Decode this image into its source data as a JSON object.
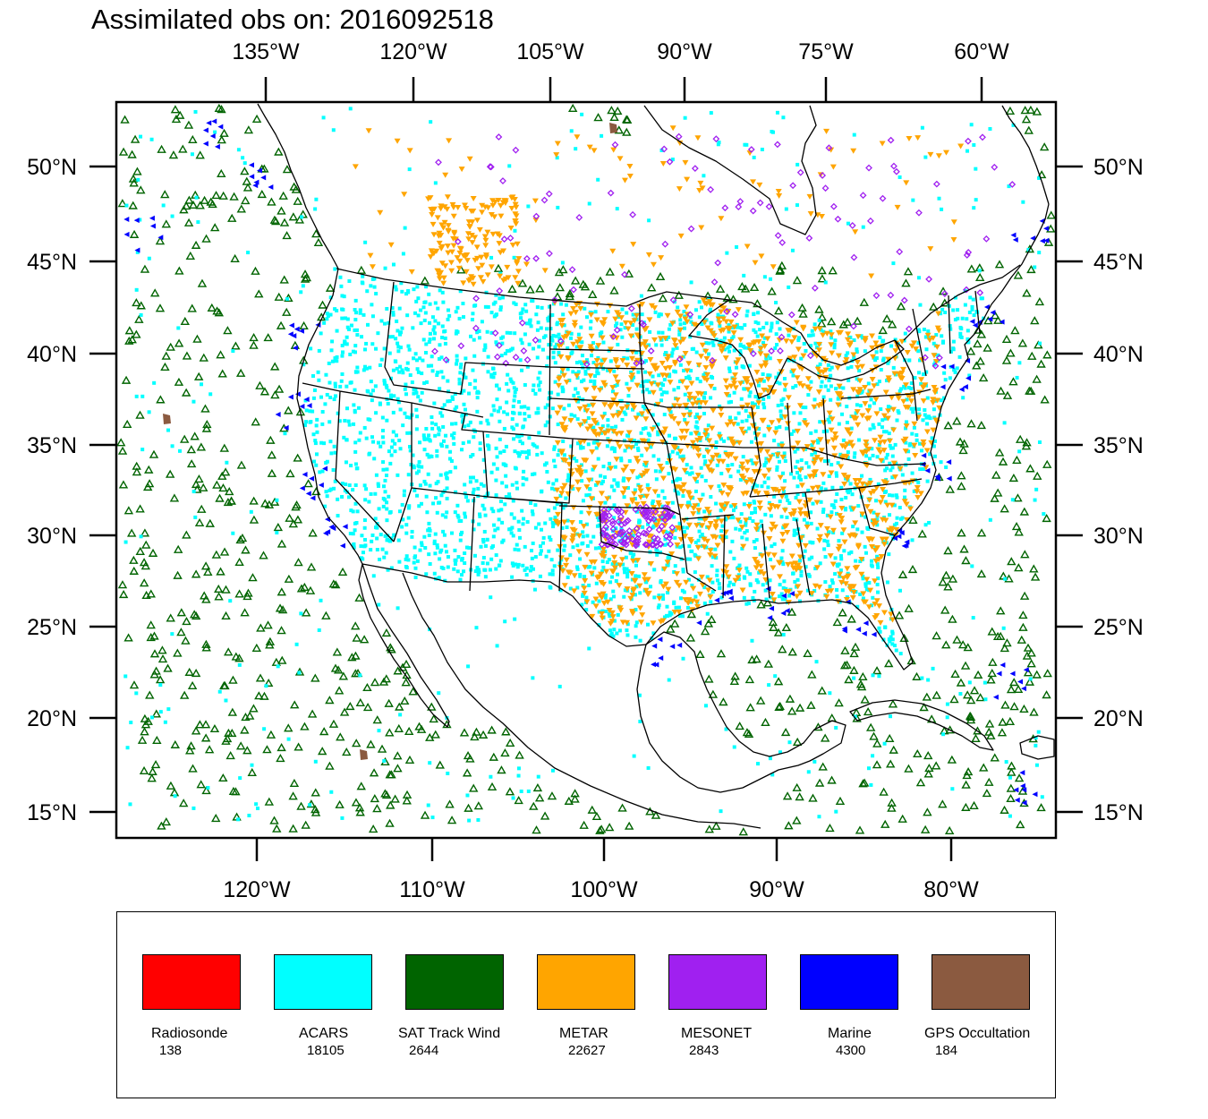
{
  "title": "Assimilated obs on: 2016092518",
  "map": {
    "projection": "Lambert conformal (North America)",
    "top_longitude_labels": [
      "135°W",
      "120°W",
      "105°W",
      "90°W",
      "75°W",
      "60°W"
    ],
    "bottom_longitude_labels": [
      "120°W",
      "110°W",
      "100°W",
      "90°W",
      "80°W"
    ],
    "left_latitude_labels": [
      "50°N",
      "45°N",
      "40°N",
      "35°N",
      "30°N",
      "25°N",
      "20°N",
      "15°N"
    ],
    "right_latitude_labels": [
      "50°N",
      "45°N",
      "40°N",
      "35°N",
      "30°N",
      "25°N",
      "20°N",
      "15°N"
    ],
    "outline_color": "#000000",
    "background_color": "#ffffff"
  },
  "legend": [
    {
      "name": "Radiosonde",
      "count": "138",
      "color": "#ff0000",
      "marker": "circle"
    },
    {
      "name": "ACARS",
      "count": "18105",
      "color": "#00ffff",
      "marker": "square-dot"
    },
    {
      "name": "SAT Track Wind",
      "count": "2644",
      "color": "#006400",
      "marker": "open-triangle"
    },
    {
      "name": "METAR",
      "count": "22627",
      "color": "#ffa500",
      "marker": "down-triangle"
    },
    {
      "name": "MESONET",
      "count": "2843",
      "color": "#a020f0",
      "marker": "open-diamond"
    },
    {
      "name": "Marine",
      "count": "4300",
      "color": "#0000ff",
      "marker": "left-triangle"
    },
    {
      "name": "GPS Occultation",
      "count": "184",
      "color": "#8b5a40",
      "marker": "filled-blob"
    }
  ]
}
